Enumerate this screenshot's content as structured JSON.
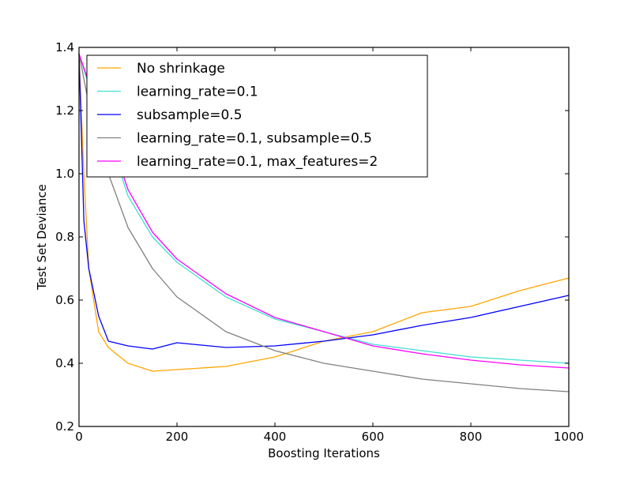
{
  "chart_data": {
    "type": "line",
    "title": "",
    "xlabel": "Boosting Iterations",
    "ylabel": "Test Set Deviance",
    "xlim": [
      0,
      1000
    ],
    "ylim": [
      0.2,
      1.4
    ],
    "xticks": [
      "0",
      "200",
      "400",
      "600",
      "800",
      "1000"
    ],
    "yticks": [
      "0.2",
      "0.4",
      "0.6",
      "0.8",
      "1.0",
      "1.2",
      "1.4"
    ],
    "grid": false,
    "legend_position": "upper left",
    "x": [
      0,
      10,
      20,
      40,
      60,
      100,
      150,
      200,
      300,
      400,
      500,
      600,
      700,
      800,
      900,
      1000
    ],
    "series": [
      {
        "name": "No shrinkage",
        "color": "#ffa500",
        "values": [
          1.38,
          1.0,
          0.7,
          0.5,
          0.45,
          0.4,
          0.375,
          0.38,
          0.39,
          0.42,
          0.47,
          0.5,
          0.56,
          0.58,
          0.63,
          0.67
        ]
      },
      {
        "name": "learning_rate=0.1",
        "color": "#40e0d0",
        "values": [
          1.38,
          1.33,
          1.28,
          1.2,
          1.12,
          0.93,
          0.8,
          0.72,
          0.61,
          0.54,
          0.5,
          0.46,
          0.44,
          0.42,
          0.41,
          0.4
        ]
      },
      {
        "name": "subsample=0.5",
        "color": "#0000ff",
        "values": [
          1.38,
          0.85,
          0.7,
          0.55,
          0.47,
          0.455,
          0.445,
          0.465,
          0.45,
          0.455,
          0.47,
          0.49,
          0.52,
          0.545,
          0.58,
          0.615
        ]
      },
      {
        "name": "learning_rate=0.1, subsample=0.5",
        "color": "#808080",
        "values": [
          1.38,
          1.3,
          1.22,
          1.1,
          1.0,
          0.83,
          0.7,
          0.61,
          0.5,
          0.44,
          0.4,
          0.375,
          0.35,
          0.335,
          0.32,
          0.31
        ]
      },
      {
        "name": "learning_rate=0.1, max_features=2",
        "color": "#ff00ff",
        "values": [
          1.38,
          1.335,
          1.29,
          1.21,
          1.135,
          0.95,
          0.815,
          0.73,
          0.62,
          0.545,
          0.5,
          0.455,
          0.43,
          0.41,
          0.395,
          0.385
        ]
      }
    ]
  }
}
